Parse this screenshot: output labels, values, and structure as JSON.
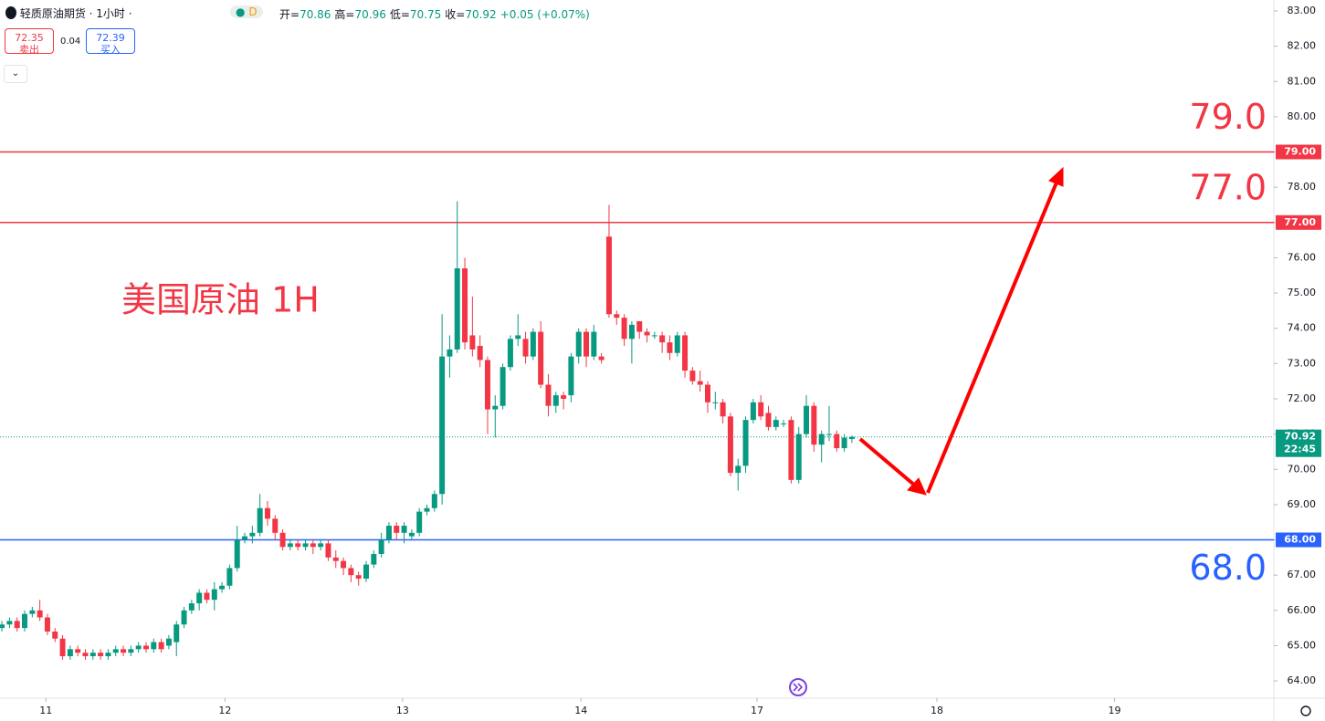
{
  "header": {
    "symbol": "轻质原油期货 · 1小时 ·",
    "badge": "D",
    "ohlc": [
      {
        "label": "开=",
        "value": "70.86"
      },
      {
        "label": "高=",
        "value": "70.96"
      },
      {
        "label": "低=",
        "value": "70.75"
      },
      {
        "label": "收=",
        "value": "70.92"
      }
    ],
    "change": "+0.05 (+0.07%)",
    "sell_price": "72.35",
    "sell_label": "卖出",
    "spread": "0.04",
    "buy_price": "72.39",
    "buy_label": "买入"
  },
  "chart_data": {
    "type": "candlestick",
    "annotation": "美国原油 1H",
    "up_color": "#089981",
    "down_color": "#f23645",
    "xlim": [
      -0.25,
      167.6
    ],
    "xticks": [
      {
        "value": 5.8,
        "label": "11"
      },
      {
        "value": 29.4,
        "label": "12"
      },
      {
        "value": 52.8,
        "label": "13"
      },
      {
        "value": 76.3,
        "label": "14"
      },
      {
        "value": 99.5,
        "label": "17"
      },
      {
        "value": 123.2,
        "label": "18"
      },
      {
        "value": 146.6,
        "label": "19"
      }
    ],
    "ylim": [
      63.51,
      83.31
    ],
    "yticks": [
      {
        "value": 64,
        "label": "64.00"
      },
      {
        "value": 65,
        "label": "65.00"
      },
      {
        "value": 66,
        "label": "66.00"
      },
      {
        "value": 67,
        "label": "67.00"
      },
      {
        "value": 68,
        "label": "68.00"
      },
      {
        "value": 69,
        "label": "69.00"
      },
      {
        "value": 70,
        "label": "70.00"
      },
      {
        "value": 71,
        "label": "71.00"
      },
      {
        "value": 72,
        "label": "72.00"
      },
      {
        "value": 73,
        "label": "73.00"
      },
      {
        "value": 74,
        "label": "74.00"
      },
      {
        "value": 75,
        "label": "75.00"
      },
      {
        "value": 76,
        "label": "76.00"
      },
      {
        "value": 77,
        "label": "77.00"
      },
      {
        "value": 78,
        "label": "78.00"
      },
      {
        "value": 79,
        "label": "79.00"
      },
      {
        "value": 80,
        "label": "80.00"
      },
      {
        "value": 81,
        "label": "81.00"
      },
      {
        "value": 82,
        "label": "82.00"
      },
      {
        "value": 83,
        "label": "83.00"
      }
    ],
    "levels": [
      {
        "value": 79,
        "label": "79.0",
        "axis_label": "79.00",
        "color": "#f23645"
      },
      {
        "value": 77,
        "label": "77.0",
        "axis_label": "77.00",
        "color": "#f23645"
      },
      {
        "value": 68,
        "label": "68.0",
        "axis_label": "68.00",
        "color": "#2962ff"
      }
    ],
    "last_price": {
      "value": 70.92,
      "axis_label": "70.92",
      "time": "22:45",
      "color": "#089981"
    },
    "open": [
      65.5,
      65.6,
      65.7,
      65.5,
      65.9,
      66.0,
      65.8,
      65.4,
      65.2,
      64.7,
      64.9,
      64.8,
      64.7,
      64.8,
      64.7,
      64.8,
      64.9,
      64.8,
      64.9,
      65.0,
      64.9,
      65.1,
      65.0,
      65.1,
      65.6,
      66.0,
      66.2,
      66.5,
      66.3,
      66.6,
      66.7,
      67.2,
      68.0,
      68.1,
      68.2,
      68.9,
      68.6,
      68.2,
      67.8,
      67.9,
      67.8,
      67.9,
      67.8,
      67.9,
      67.5,
      67.4,
      67.2,
      67.0,
      66.9,
      67.3,
      67.6,
      68.0,
      68.4,
      68.2,
      68.1,
      68.2,
      68.8,
      68.9,
      69.3,
      73.2,
      73.4,
      75.7,
      73.8,
      73.5,
      73.1,
      71.7,
      71.8,
      72.9,
      73.7,
      73.7,
      73.2,
      73.9,
      72.4,
      71.8,
      72.1,
      72.1,
      73.2,
      73.9,
      73.2,
      73.2,
      76.6,
      74.4,
      74.3,
      73.7,
      74.2,
      73.9,
      73.8,
      73.8,
      73.6,
      73.3,
      73.8,
      72.8,
      72.5,
      72.4,
      71.9,
      71.9,
      71.5,
      69.9,
      70.1,
      71.4,
      71.9,
      71.6,
      71.2,
      71.3,
      71.4,
      69.7,
      71.0,
      71.8,
      70.7,
      71.0,
      71.0,
      70.6,
      70.86
    ],
    "high": [
      65.7,
      65.8,
      65.8,
      66.0,
      66.1,
      66.3,
      65.9,
      65.5,
      65.3,
      65.0,
      65.0,
      64.9,
      64.9,
      64.9,
      64.9,
      65.0,
      65.0,
      65.0,
      65.1,
      65.1,
      65.2,
      65.2,
      65.3,
      65.7,
      66.1,
      66.3,
      66.6,
      66.6,
      66.8,
      66.8,
      67.3,
      68.4,
      68.2,
      68.4,
      69.3,
      69.1,
      68.7,
      68.3,
      68.0,
      68.0,
      68.0,
      68.0,
      68.0,
      68.0,
      67.7,
      67.5,
      67.3,
      67.1,
      67.4,
      67.7,
      68.2,
      68.5,
      68.5,
      68.5,
      68.3,
      68.9,
      69.0,
      69.4,
      74.4,
      73.8,
      77.6,
      76.0,
      74.9,
      73.8,
      73.2,
      72.1,
      73.0,
      73.8,
      74.4,
      73.9,
      74.0,
      74.2,
      72.7,
      72.2,
      72.2,
      73.3,
      74.0,
      74.0,
      74.1,
      73.3,
      77.5,
      74.5,
      74.4,
      74.2,
      74.2,
      74.0,
      73.9,
      73.9,
      73.8,
      73.9,
      73.9,
      72.9,
      72.8,
      72.5,
      72.2,
      72.0,
      71.6,
      70.3,
      71.5,
      72.0,
      72.1,
      71.8,
      71.5,
      71.4,
      71.5,
      71.2,
      72.1,
      71.9,
      71.1,
      71.8,
      71.1,
      71.0,
      70.96
    ],
    "low": [
      65.4,
      65.5,
      65.4,
      65.4,
      65.8,
      65.7,
      65.3,
      65.1,
      64.6,
      64.6,
      64.7,
      64.6,
      64.6,
      64.6,
      64.6,
      64.7,
      64.7,
      64.7,
      64.8,
      64.8,
      64.8,
      64.8,
      64.9,
      64.7,
      65.5,
      65.9,
      66.0,
      66.2,
      66.0,
      66.5,
      66.6,
      67.1,
      67.9,
      67.9,
      68.1,
      68.4,
      68.0,
      67.7,
      67.7,
      67.7,
      67.7,
      67.6,
      67.7,
      67.4,
      67.2,
      67.0,
      66.8,
      66.7,
      66.8,
      67.2,
      67.5,
      67.9,
      68.0,
      67.9,
      68.0,
      68.1,
      68.7,
      68.8,
      69.0,
      72.6,
      73.3,
      73.4,
      73.2,
      72.9,
      71.0,
      70.9,
      71.7,
      72.8,
      73.5,
      73.0,
      73.1,
      72.3,
      71.5,
      71.6,
      71.7,
      71.9,
      73.0,
      72.9,
      73.1,
      73.0,
      74.3,
      74.1,
      73.5,
      73.0,
      73.7,
      73.6,
      73.7,
      73.3,
      73.1,
      73.2,
      72.6,
      72.4,
      72.2,
      71.6,
      71.7,
      71.3,
      69.8,
      69.4,
      69.9,
      71.3,
      71.4,
      71.1,
      71.1,
      71.2,
      69.6,
      69.6,
      70.9,
      70.5,
      70.2,
      70.8,
      70.5,
      70.5,
      70.75
    ],
    "close": [
      65.6,
      65.7,
      65.5,
      65.9,
      66.0,
      65.8,
      65.4,
      65.2,
      64.7,
      64.9,
      64.8,
      64.7,
      64.8,
      64.7,
      64.8,
      64.9,
      64.8,
      64.9,
      65.0,
      64.9,
      65.1,
      64.9,
      65.2,
      65.6,
      66.0,
      66.2,
      66.5,
      66.3,
      66.6,
      66.7,
      67.2,
      68.0,
      68.1,
      68.2,
      68.9,
      68.6,
      68.2,
      67.8,
      67.9,
      67.8,
      67.9,
      67.8,
      67.9,
      67.5,
      67.4,
      67.2,
      67.0,
      66.9,
      67.3,
      67.6,
      68.0,
      68.4,
      68.2,
      68.4,
      68.2,
      68.8,
      68.9,
      69.3,
      73.2,
      73.4,
      75.7,
      73.6,
      73.4,
      73.1,
      71.7,
      71.8,
      72.9,
      73.7,
      73.8,
      73.2,
      73.9,
      72.4,
      71.8,
      72.1,
      72.0,
      73.2,
      73.9,
      73.2,
      73.9,
      73.1,
      74.4,
      74.3,
      73.7,
      74.1,
      73.9,
      73.8,
      73.8,
      73.6,
      73.3,
      73.8,
      72.8,
      72.5,
      72.4,
      71.9,
      71.9,
      71.5,
      69.9,
      70.1,
      71.4,
      71.9,
      71.5,
      71.2,
      71.4,
      71.3,
      69.7,
      71.0,
      71.8,
      70.7,
      71.0,
      71.0,
      70.6,
      70.9,
      70.92
    ]
  }
}
